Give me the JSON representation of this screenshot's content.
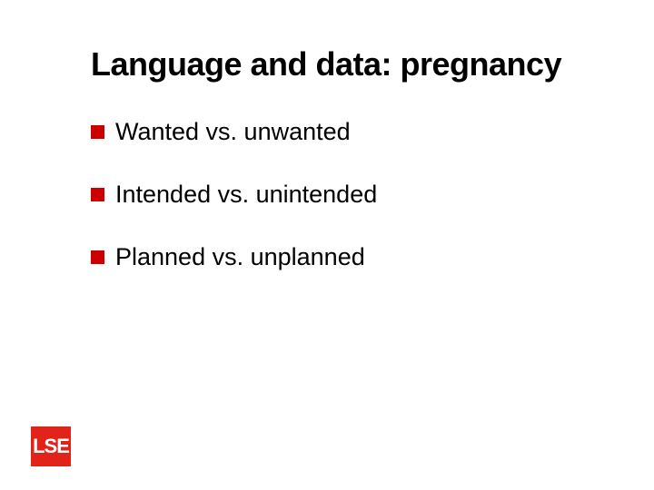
{
  "title": "Language and data: pregnancy",
  "bullets": [
    {
      "text": "Wanted vs. unwanted"
    },
    {
      "text": "Intended vs. unintended"
    },
    {
      "text": "Planned vs. unplanned"
    }
  ],
  "logo_text": "LSE",
  "colors": {
    "bullet_marker": "#cc0000",
    "logo_bg": "#e2231a",
    "logo_fg": "#ffffff",
    "text": "#000000",
    "background": "#ffffff"
  },
  "typography": {
    "title_fontsize": 36,
    "title_fontweight": "bold",
    "bullet_fontsize": 27,
    "logo_fontsize": 22
  },
  "layout": {
    "slide_width": 720,
    "slide_height": 540,
    "bullet_marker_size": 15,
    "bullet_spacing": 38,
    "logo_size": 44
  }
}
